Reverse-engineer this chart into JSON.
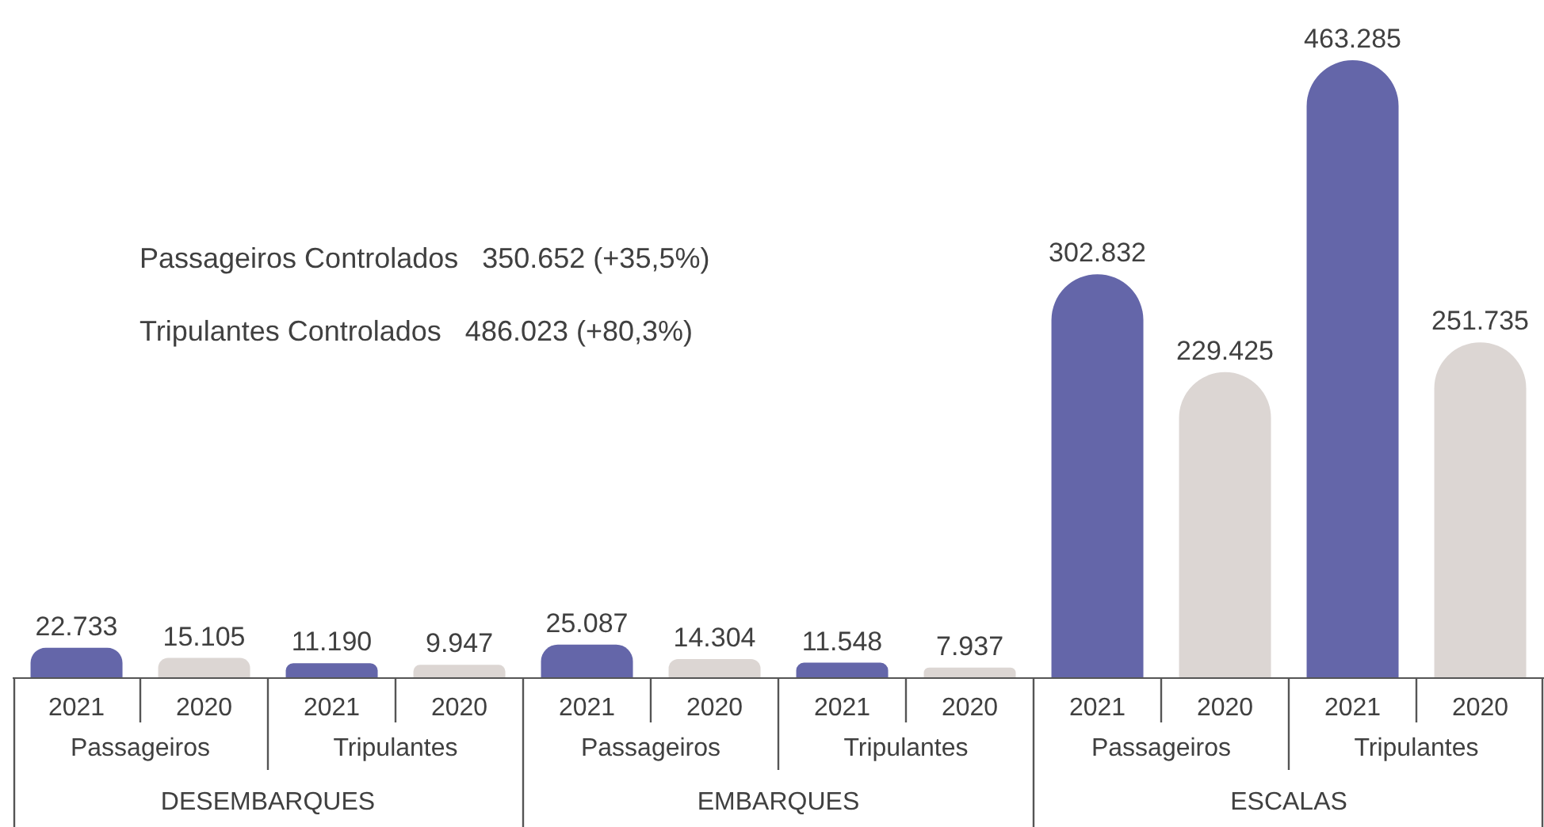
{
  "chart_data": {
    "type": "bar",
    "categories": [
      "2021",
      "2020",
      "2021",
      "2020",
      "2021",
      "2020",
      "2021",
      "2020",
      "2021",
      "2020",
      "2021",
      "2020"
    ],
    "values": [
      22733,
      15105,
      11190,
      9947,
      25087,
      14304,
      11548,
      7937,
      302832,
      229425,
      463285,
      251735
    ],
    "value_labels": [
      "22.733",
      "15.105",
      "11.190",
      "9.947",
      "25.087",
      "14.304",
      "11.548",
      "7.937",
      "302.832",
      "229.425",
      "463.285",
      "251.735"
    ],
    "colors": [
      "#6466a9",
      "#dcd6d3",
      "#6466a9",
      "#dcd6d3",
      "#6466a9",
      "#dcd6d3",
      "#6466a9",
      "#dcd6d3",
      "#6466a9",
      "#dcd6d3",
      "#6466a9",
      "#dcd6d3"
    ],
    "annotations": [
      "Passageiros Controlados   350.652 (+35,5%)",
      "Tripulantes Controlados   486.023 (+80,3%)",
      "Passageiros",
      "Tripulantes",
      "Passageiros",
      "Tripulantes",
      "Passageiros",
      "Tripulantes",
      "DESEMBARQUES",
      "EMBARQUES",
      "ESCALAS"
    ],
    "legend": false,
    "grid": false
  }
}
